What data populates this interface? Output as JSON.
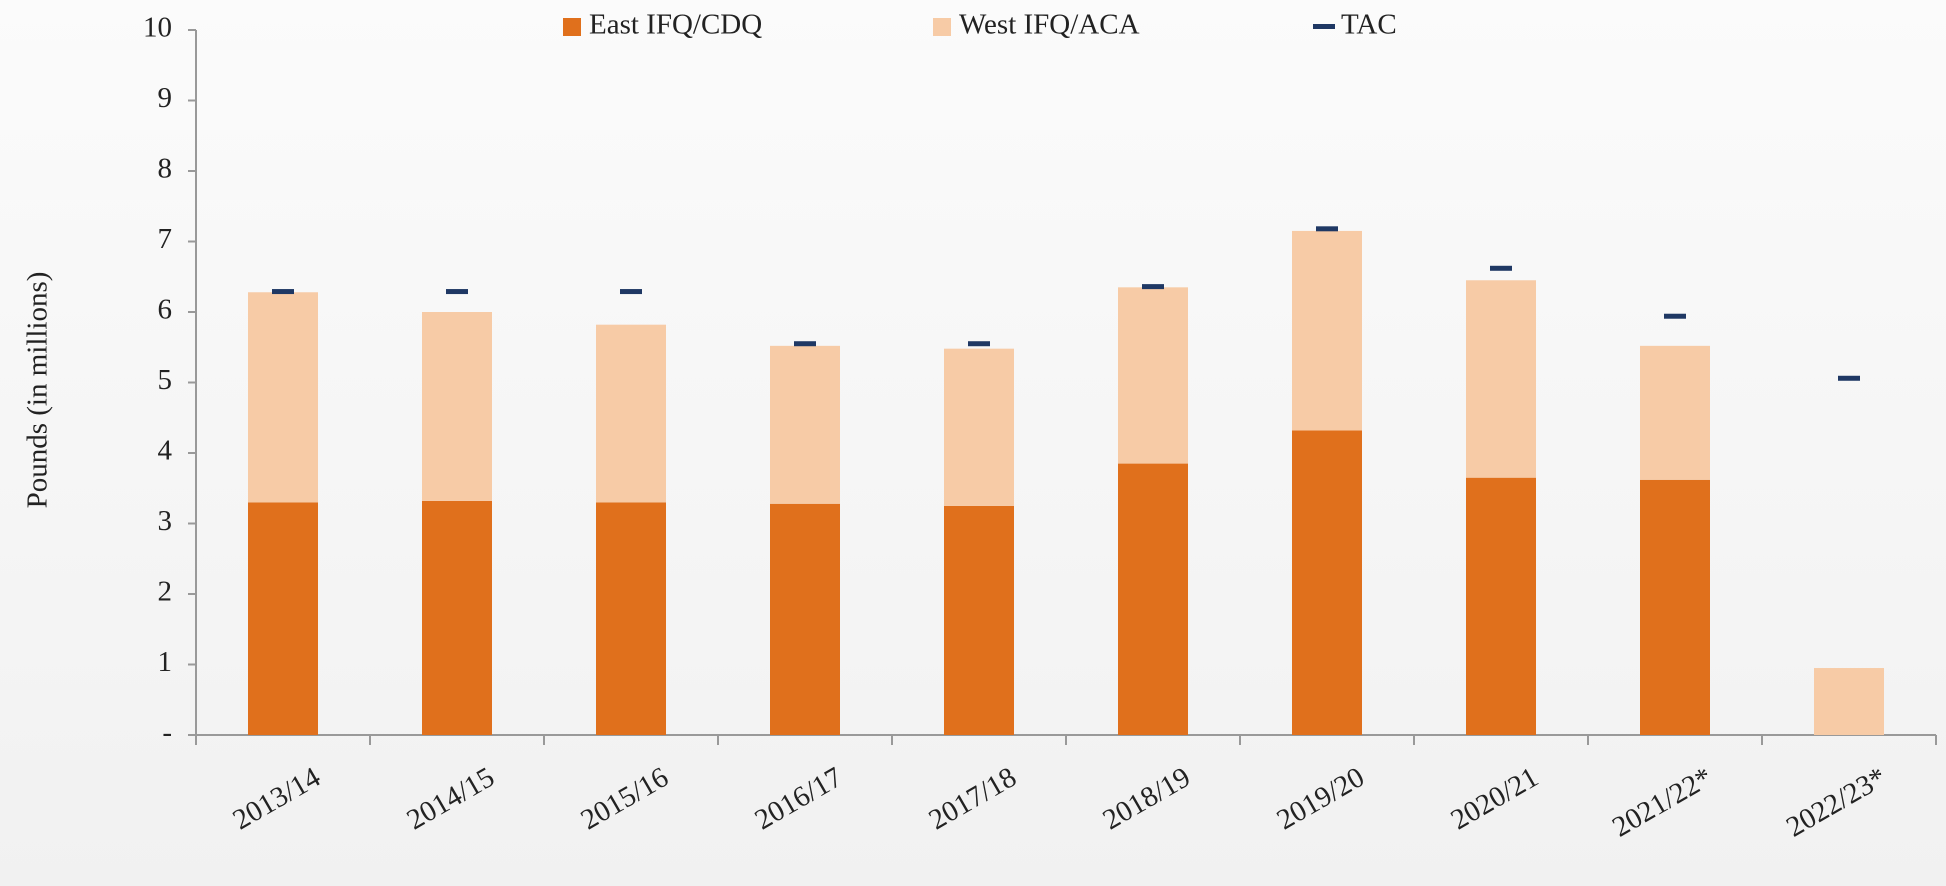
{
  "chart_data": {
    "type": "stacked_bar",
    "y_label": "Pounds (in millions)",
    "categories": [
      "2013/14",
      "2014/15",
      "2015/16",
      "2016/17",
      "2017/18",
      "2018/19",
      "2019/20",
      "2020/21",
      "2021/22*",
      "2022/23*"
    ],
    "series": [
      {
        "name": "East IFQ/CDQ",
        "color": "#e0701c",
        "kind": "bar",
        "values": [
          3.3,
          3.32,
          3.3,
          3.28,
          3.25,
          3.85,
          4.32,
          3.65,
          3.62,
          null
        ]
      },
      {
        "name": "West IFQ/ACA",
        "color": "#f7cba6",
        "kind": "bar",
        "values": [
          2.98,
          2.68,
          2.52,
          2.24,
          2.23,
          2.5,
          2.83,
          2.8,
          1.9,
          0.95
        ]
      },
      {
        "name": "TAC",
        "color": "#1f3864",
        "kind": "dash",
        "values": [
          6.29,
          6.29,
          6.29,
          5.55,
          5.55,
          6.36,
          7.18,
          6.62,
          5.94,
          5.06
        ]
      }
    ],
    "ylim": [
      0,
      10
    ],
    "yticks": [
      {
        "value": 0,
        "label": "-"
      },
      1,
      2,
      3,
      4,
      5,
      6,
      7,
      8,
      9,
      10
    ],
    "legend": "top"
  }
}
